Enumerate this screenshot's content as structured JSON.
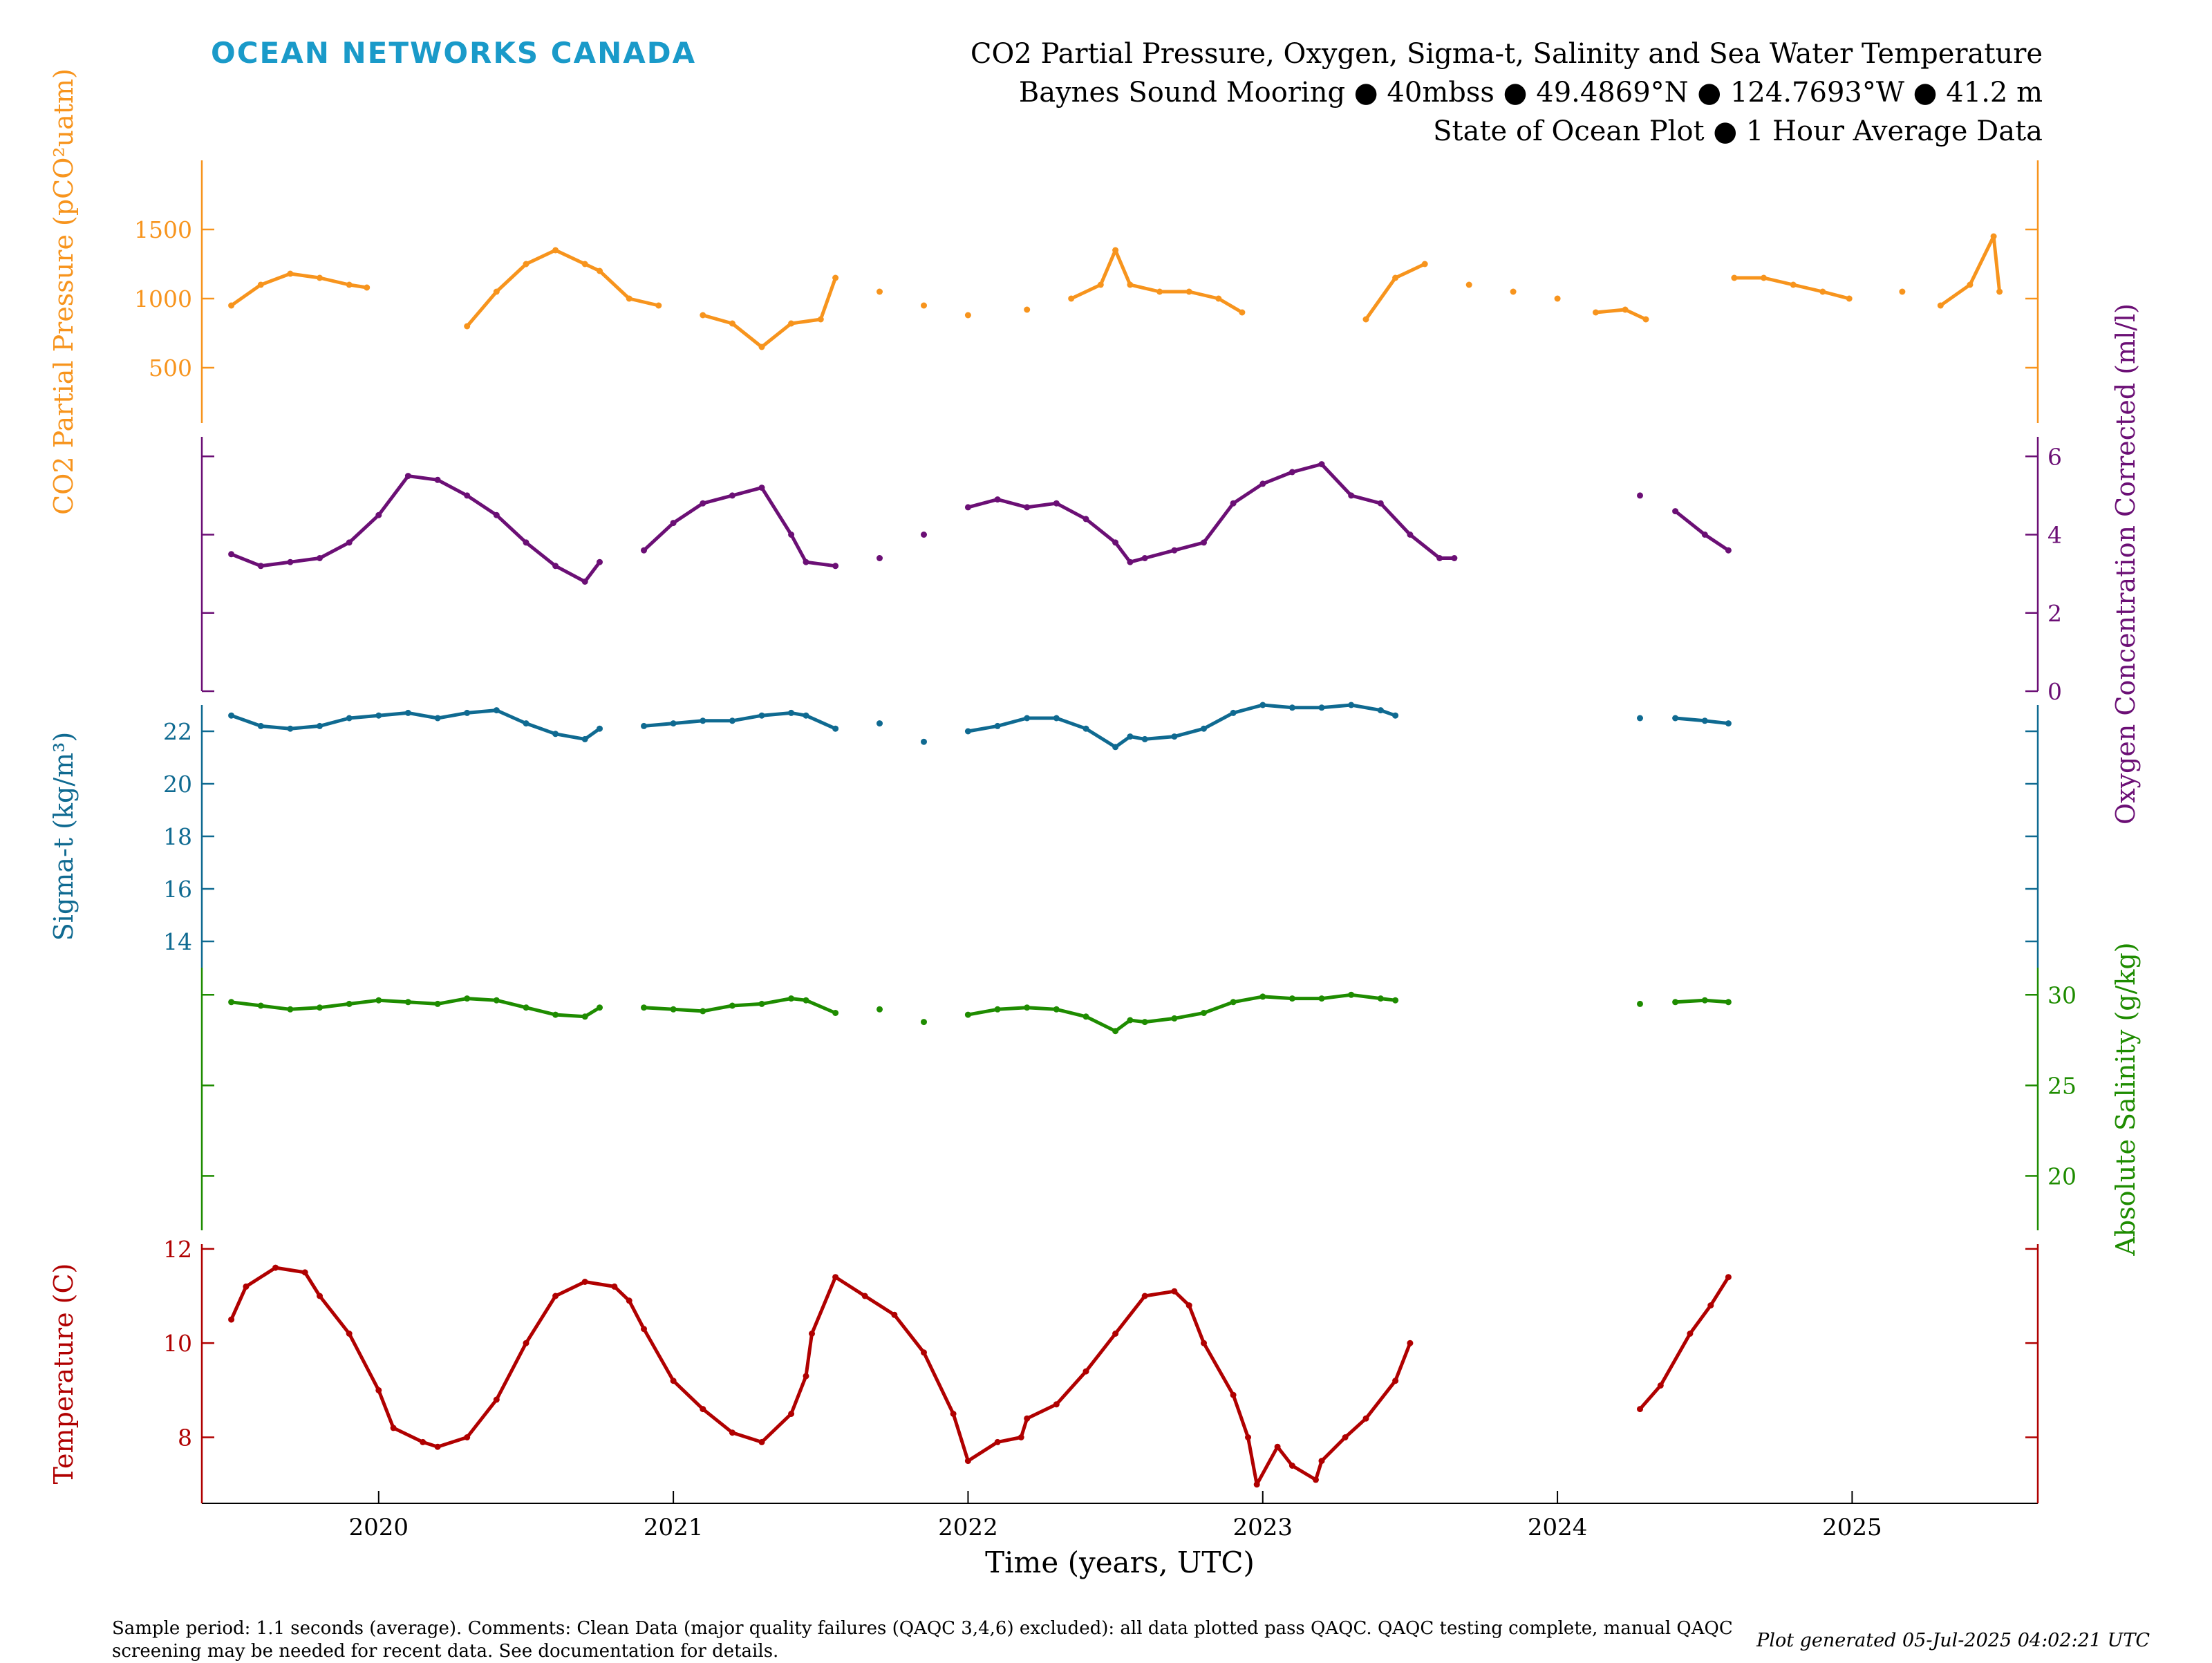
{
  "header": {
    "logo_text": "OCEAN NETWORKS CANADA",
    "title_lines": [
      "CO2 Partial Pressure, Oxygen, Sigma-t, Salinity and Sea Water Temperature",
      "Baynes Sound Mooring ● 40mbss ● 49.4869°N ● 124.7693°W ● 41.2 m",
      "State of Ocean Plot ● 1 Hour Average Data"
    ]
  },
  "footer": {
    "note": "Sample period: 1.1 seconds (average). Comments: Clean Data (major quality failures (QAQC 3,4,6) excluded): all data plotted pass QAQC. QAQC testing complete, manual QAQC screening may be needed for recent data. See documentation for details.",
    "generated": "Plot generated 05-Jul-2025 04:02:21 UTC"
  },
  "colors": {
    "co2": "#f7941d",
    "oxygen": "#6b0f75",
    "sigma": "#0f6a91",
    "salinity": "#1e8c00",
    "temperature": "#b00000"
  },
  "chart_data": {
    "type": "line",
    "xlabel": "Time (years, UTC)",
    "xlim": [
      2019.4,
      2025.63
    ],
    "x_ticks": [
      2020,
      2021,
      2022,
      2023,
      2024,
      2025
    ],
    "series": [
      {
        "key": "co2",
        "axis_label": "CO2 Partial Pressure (pCO²uatm)",
        "axis_side": "left",
        "ylim": [
          100,
          2000
        ],
        "ticks": [
          500,
          1000,
          1500
        ],
        "points": [
          [
            2019.5,
            950
          ],
          [
            2019.6,
            1100
          ],
          [
            2019.7,
            1180
          ],
          [
            2019.8,
            1150
          ],
          [
            2019.9,
            1100
          ],
          [
            2019.96,
            1080
          ],
          [
            2020.3,
            800
          ],
          [
            2020.4,
            1050
          ],
          [
            2020.5,
            1250
          ],
          [
            2020.6,
            1350
          ],
          [
            2020.7,
            1250
          ],
          [
            2020.75,
            1200
          ],
          [
            2020.85,
            1000
          ],
          [
            2020.95,
            950
          ],
          [
            2021.1,
            880
          ],
          [
            2021.2,
            820
          ],
          [
            2021.3,
            650
          ],
          [
            2021.4,
            820
          ],
          [
            2021.5,
            850
          ],
          [
            2021.55,
            1150
          ],
          [
            2021.7,
            1050
          ],
          [
            2021.85,
            950
          ],
          [
            2022.0,
            880
          ],
          [
            2022.2,
            920
          ],
          [
            2022.35,
            1000
          ],
          [
            2022.45,
            1100
          ],
          [
            2022.5,
            1350
          ],
          [
            2022.55,
            1100
          ],
          [
            2022.65,
            1050
          ],
          [
            2022.75,
            1050
          ],
          [
            2022.85,
            1000
          ],
          [
            2022.93,
            900
          ],
          [
            2023.35,
            850
          ],
          [
            2023.45,
            1150
          ],
          [
            2023.55,
            1250
          ],
          [
            2023.7,
            1100
          ],
          [
            2023.85,
            1050
          ],
          [
            2024.0,
            1000
          ],
          [
            2024.13,
            900
          ],
          [
            2024.23,
            920
          ],
          [
            2024.3,
            850
          ],
          [
            2024.6,
            1150
          ],
          [
            2024.7,
            1150
          ],
          [
            2024.8,
            1100
          ],
          [
            2024.9,
            1050
          ],
          [
            2024.99,
            1000
          ],
          [
            2025.17,
            1050
          ],
          [
            2025.3,
            950
          ],
          [
            2025.4,
            1100
          ],
          [
            2025.48,
            1450
          ],
          [
            2025.5,
            1050
          ]
        ]
      },
      {
        "key": "oxygen",
        "axis_label": "Oxygen Concentration Corrected (ml/l)",
        "axis_side": "right",
        "ylim": [
          0,
          6.5
        ],
        "ticks": [
          0,
          2,
          4,
          6
        ],
        "points": [
          [
            2019.5,
            3.5
          ],
          [
            2019.6,
            3.2
          ],
          [
            2019.7,
            3.3
          ],
          [
            2019.8,
            3.4
          ],
          [
            2019.9,
            3.8
          ],
          [
            2020.0,
            4.5
          ],
          [
            2020.1,
            5.5
          ],
          [
            2020.2,
            5.4
          ],
          [
            2020.3,
            5.0
          ],
          [
            2020.4,
            4.5
          ],
          [
            2020.5,
            3.8
          ],
          [
            2020.6,
            3.2
          ],
          [
            2020.7,
            2.8
          ],
          [
            2020.75,
            3.3
          ],
          [
            2020.9,
            3.6
          ],
          [
            2021.0,
            4.3
          ],
          [
            2021.1,
            4.8
          ],
          [
            2021.2,
            5.0
          ],
          [
            2021.3,
            5.2
          ],
          [
            2021.4,
            4.0
          ],
          [
            2021.45,
            3.3
          ],
          [
            2021.55,
            3.2
          ],
          [
            2021.7,
            3.4
          ],
          [
            2021.85,
            4.0
          ],
          [
            2022.0,
            4.7
          ],
          [
            2022.1,
            4.9
          ],
          [
            2022.2,
            4.7
          ],
          [
            2022.3,
            4.8
          ],
          [
            2022.4,
            4.4
          ],
          [
            2022.5,
            3.8
          ],
          [
            2022.55,
            3.3
          ],
          [
            2022.6,
            3.4
          ],
          [
            2022.7,
            3.6
          ],
          [
            2022.8,
            3.8
          ],
          [
            2022.9,
            4.8
          ],
          [
            2023.0,
            5.3
          ],
          [
            2023.1,
            5.6
          ],
          [
            2023.2,
            5.8
          ],
          [
            2023.3,
            5.0
          ],
          [
            2023.4,
            4.8
          ],
          [
            2023.5,
            4.0
          ],
          [
            2023.6,
            3.4
          ],
          [
            2023.65,
            3.4
          ],
          [
            2024.28,
            5.0
          ],
          [
            2024.4,
            4.6
          ],
          [
            2024.5,
            4.0
          ],
          [
            2024.58,
            3.6
          ]
        ]
      },
      {
        "key": "sigma",
        "axis_label": "Sigma-t (kg/m³)",
        "axis_side": "left",
        "ylim": [
          13,
          23
        ],
        "ticks": [
          14,
          16,
          18,
          20,
          22
        ],
        "points": [
          [
            2019.5,
            22.6
          ],
          [
            2019.6,
            22.2
          ],
          [
            2019.7,
            22.1
          ],
          [
            2019.8,
            22.2
          ],
          [
            2019.9,
            22.5
          ],
          [
            2020.0,
            22.6
          ],
          [
            2020.1,
            22.7
          ],
          [
            2020.2,
            22.5
          ],
          [
            2020.3,
            22.7
          ],
          [
            2020.4,
            22.8
          ],
          [
            2020.5,
            22.3
          ],
          [
            2020.6,
            21.9
          ],
          [
            2020.7,
            21.7
          ],
          [
            2020.75,
            22.1
          ],
          [
            2020.9,
            22.2
          ],
          [
            2021.0,
            22.3
          ],
          [
            2021.1,
            22.4
          ],
          [
            2021.2,
            22.4
          ],
          [
            2021.3,
            22.6
          ],
          [
            2021.4,
            22.7
          ],
          [
            2021.45,
            22.6
          ],
          [
            2021.55,
            22.1
          ],
          [
            2021.7,
            22.3
          ],
          [
            2021.85,
            21.6
          ],
          [
            2022.0,
            22.0
          ],
          [
            2022.1,
            22.2
          ],
          [
            2022.2,
            22.5
          ],
          [
            2022.3,
            22.5
          ],
          [
            2022.4,
            22.1
          ],
          [
            2022.5,
            21.4
          ],
          [
            2022.55,
            21.8
          ],
          [
            2022.6,
            21.7
          ],
          [
            2022.7,
            21.8
          ],
          [
            2022.8,
            22.1
          ],
          [
            2022.9,
            22.7
          ],
          [
            2023.0,
            23.0
          ],
          [
            2023.1,
            22.9
          ],
          [
            2023.2,
            22.9
          ],
          [
            2023.3,
            23.0
          ],
          [
            2023.4,
            22.8
          ],
          [
            2023.45,
            22.6
          ],
          [
            2024.28,
            22.5
          ],
          [
            2024.4,
            22.5
          ],
          [
            2024.5,
            22.4
          ],
          [
            2024.58,
            22.3
          ]
        ]
      },
      {
        "key": "salinity",
        "axis_label": "Absolute Salinity (g/kg)",
        "axis_side": "right",
        "ylim": [
          17,
          31.5
        ],
        "ticks": [
          20,
          25,
          30
        ],
        "points": [
          [
            2019.5,
            29.6
          ],
          [
            2019.6,
            29.4
          ],
          [
            2019.7,
            29.2
          ],
          [
            2019.8,
            29.3
          ],
          [
            2019.9,
            29.5
          ],
          [
            2020.0,
            29.7
          ],
          [
            2020.1,
            29.6
          ],
          [
            2020.2,
            29.5
          ],
          [
            2020.3,
            29.8
          ],
          [
            2020.4,
            29.7
          ],
          [
            2020.5,
            29.3
          ],
          [
            2020.6,
            28.9
          ],
          [
            2020.7,
            28.8
          ],
          [
            2020.75,
            29.3
          ],
          [
            2020.9,
            29.3
          ],
          [
            2021.0,
            29.2
          ],
          [
            2021.1,
            29.1
          ],
          [
            2021.2,
            29.4
          ],
          [
            2021.3,
            29.5
          ],
          [
            2021.4,
            29.8
          ],
          [
            2021.45,
            29.7
          ],
          [
            2021.55,
            29.0
          ],
          [
            2021.7,
            29.2
          ],
          [
            2021.85,
            28.5
          ],
          [
            2022.0,
            28.9
          ],
          [
            2022.1,
            29.2
          ],
          [
            2022.2,
            29.3
          ],
          [
            2022.3,
            29.2
          ],
          [
            2022.4,
            28.8
          ],
          [
            2022.5,
            28.0
          ],
          [
            2022.55,
            28.6
          ],
          [
            2022.6,
            28.5
          ],
          [
            2022.7,
            28.7
          ],
          [
            2022.8,
            29.0
          ],
          [
            2022.9,
            29.6
          ],
          [
            2023.0,
            29.9
          ],
          [
            2023.1,
            29.8
          ],
          [
            2023.2,
            29.8
          ],
          [
            2023.3,
            30.0
          ],
          [
            2023.4,
            29.8
          ],
          [
            2023.45,
            29.7
          ],
          [
            2024.28,
            29.5
          ],
          [
            2024.4,
            29.6
          ],
          [
            2024.5,
            29.7
          ],
          [
            2024.58,
            29.6
          ]
        ]
      },
      {
        "key": "temperature",
        "axis_label": "Temperature (C)",
        "axis_side": "left",
        "ylim": [
          6.6,
          12.1
        ],
        "ticks": [
          8,
          10,
          12
        ],
        "points": [
          [
            2019.5,
            10.5
          ],
          [
            2019.55,
            11.2
          ],
          [
            2019.65,
            11.6
          ],
          [
            2019.75,
            11.5
          ],
          [
            2019.8,
            11.0
          ],
          [
            2019.9,
            10.2
          ],
          [
            2020.0,
            9.0
          ],
          [
            2020.05,
            8.2
          ],
          [
            2020.15,
            7.9
          ],
          [
            2020.2,
            7.8
          ],
          [
            2020.3,
            8.0
          ],
          [
            2020.4,
            8.8
          ],
          [
            2020.5,
            10.0
          ],
          [
            2020.6,
            11.0
          ],
          [
            2020.7,
            11.3
          ],
          [
            2020.8,
            11.2
          ],
          [
            2020.85,
            10.9
          ],
          [
            2020.9,
            10.3
          ],
          [
            2021.0,
            9.2
          ],
          [
            2021.1,
            8.6
          ],
          [
            2021.2,
            8.1
          ],
          [
            2021.3,
            7.9
          ],
          [
            2021.4,
            8.5
          ],
          [
            2021.45,
            9.3
          ],
          [
            2021.47,
            10.2
          ],
          [
            2021.55,
            11.4
          ],
          [
            2021.65,
            11.0
          ],
          [
            2021.75,
            10.6
          ],
          [
            2021.85,
            9.8
          ],
          [
            2021.95,
            8.5
          ],
          [
            2022.0,
            7.5
          ],
          [
            2022.1,
            7.9
          ],
          [
            2022.18,
            8.0
          ],
          [
            2022.2,
            8.4
          ],
          [
            2022.3,
            8.7
          ],
          [
            2022.4,
            9.4
          ],
          [
            2022.5,
            10.2
          ],
          [
            2022.6,
            11.0
          ],
          [
            2022.7,
            11.1
          ],
          [
            2022.75,
            10.8
          ],
          [
            2022.8,
            10.0
          ],
          [
            2022.9,
            8.9
          ],
          [
            2022.95,
            8.0
          ],
          [
            2022.98,
            7.0
          ],
          [
            2023.05,
            7.8
          ],
          [
            2023.1,
            7.4
          ],
          [
            2023.18,
            7.1
          ],
          [
            2023.2,
            7.5
          ],
          [
            2023.28,
            8.0
          ],
          [
            2023.35,
            8.4
          ],
          [
            2023.45,
            9.2
          ],
          [
            2023.5,
            10.0
          ],
          [
            2024.28,
            8.6
          ],
          [
            2024.35,
            9.1
          ],
          [
            2024.45,
            10.2
          ],
          [
            2024.52,
            10.8
          ],
          [
            2024.58,
            11.4
          ]
        ]
      }
    ]
  }
}
